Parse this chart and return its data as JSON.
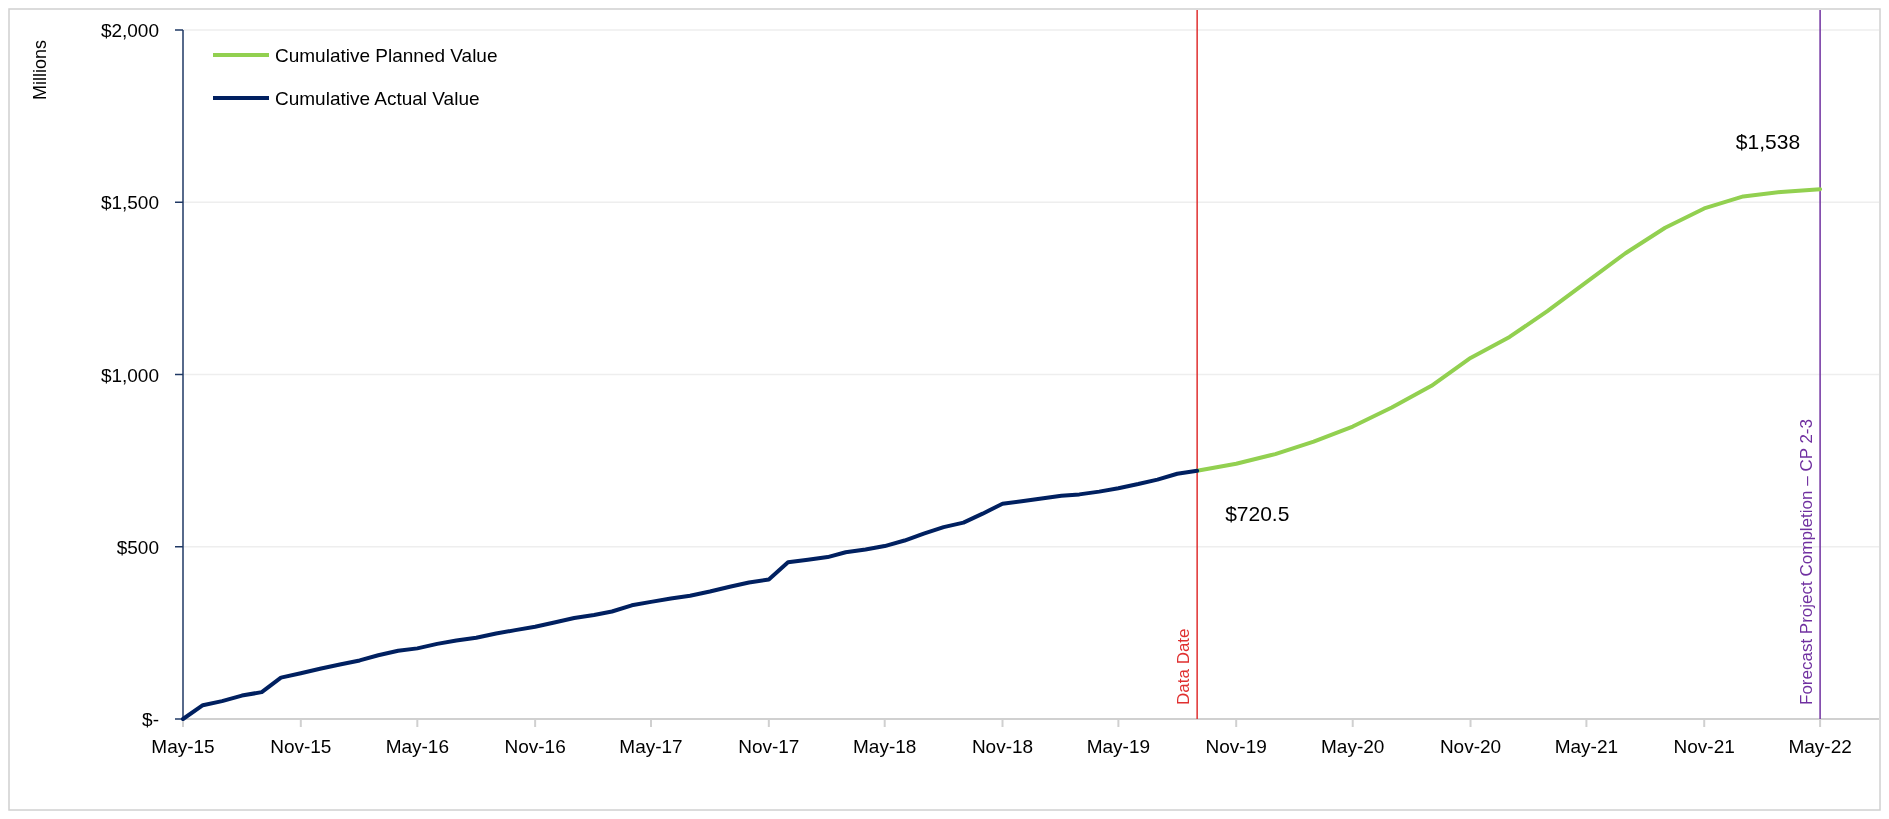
{
  "chart_data": {
    "type": "line",
    "ylabel": "Millions",
    "xlim": [
      "2015-05",
      "2022-08"
    ],
    "xticks": [
      {
        "value": "2015-05",
        "label": "May-15"
      },
      {
        "value": "2015-11",
        "label": "Nov-15"
      },
      {
        "value": "2016-05",
        "label": "May-16"
      },
      {
        "value": "2016-11",
        "label": "Nov-16"
      },
      {
        "value": "2017-05",
        "label": "May-17"
      },
      {
        "value": "2017-11",
        "label": "Nov-17"
      },
      {
        "value": "2018-05",
        "label": "May-18"
      },
      {
        "value": "2018-11",
        "label": "Nov-18"
      },
      {
        "value": "2019-05",
        "label": "May-19"
      },
      {
        "value": "2019-11",
        "label": "Nov-19"
      },
      {
        "value": "2020-05",
        "label": "May-20"
      },
      {
        "value": "2020-11",
        "label": "Nov-20"
      },
      {
        "value": "2021-05",
        "label": "May-21"
      },
      {
        "value": "2021-11",
        "label": "Nov-21"
      },
      {
        "value": "2022-05",
        "label": "May-22"
      }
    ],
    "ylim": [
      0,
      2000
    ],
    "yticks": [
      {
        "value": 0,
        "label": "$-"
      },
      {
        "value": 500,
        "label": "$500"
      },
      {
        "value": 1000,
        "label": "$1,000"
      },
      {
        "value": 1500,
        "label": "$1,500"
      },
      {
        "value": 2000,
        "label": "$2,000"
      }
    ],
    "grid": "y",
    "legend": "top left",
    "series": [
      {
        "name": "Cumulative Planned Value",
        "color": "#92d050",
        "x": [
          "2019-09",
          "2019-11",
          "2020-01",
          "2020-03",
          "2020-05",
          "2020-07",
          "2020-09",
          "2020-11",
          "2021-01",
          "2021-03",
          "2021-05",
          "2021-07",
          "2021-09",
          "2021-11",
          "2022-01",
          "2022-03",
          "2022-05"
        ],
        "values": [
          720.5,
          741,
          769,
          805,
          849,
          904,
          967,
          1048,
          1109,
          1184,
          1268,
          1352,
          1426,
          1482,
          1517,
          1530,
          1538
        ]
      },
      {
        "name": "Cumulative Actual Value",
        "color": "#002060",
        "x": [
          "2015-05",
          "2015-06",
          "2015-07",
          "2015-08",
          "2015-09",
          "2015-10",
          "2015-11",
          "2015-12",
          "2016-01",
          "2016-02",
          "2016-03",
          "2016-04",
          "2016-05",
          "2016-06",
          "2016-07",
          "2016-08",
          "2016-09",
          "2016-10",
          "2016-11",
          "2016-12",
          "2017-01",
          "2017-02",
          "2017-03",
          "2017-04",
          "2017-05",
          "2017-06",
          "2017-07",
          "2017-08",
          "2017-09",
          "2017-10",
          "2017-11",
          "2017-12",
          "2018-01",
          "2018-02",
          "2018-03",
          "2018-04",
          "2018-05",
          "2018-06",
          "2018-07",
          "2018-08",
          "2018-09",
          "2018-10",
          "2018-11",
          "2018-12",
          "2019-01",
          "2019-02",
          "2019-03",
          "2019-04",
          "2019-05",
          "2019-06",
          "2019-07",
          "2019-08",
          "2019-09"
        ],
        "values": [
          0,
          40,
          52,
          68,
          78,
          120,
          133,
          146,
          158,
          170,
          185,
          198,
          205,
          218,
          228,
          236,
          248,
          258,
          268,
          280,
          293,
          302,
          312,
          330,
          340,
          350,
          358,
          370,
          384,
          396,
          405,
          455,
          462,
          470,
          484,
          492,
          502,
          518,
          538,
          557,
          570,
          596,
          625,
          632,
          640,
          648,
          652,
          660,
          670,
          682,
          695,
          712,
          720.5
        ]
      }
    ],
    "ref_lines": [
      {
        "axis": "x",
        "value": "2019-09",
        "label": "Data Date",
        "color": "#e03030"
      },
      {
        "axis": "x",
        "value": "2022-05",
        "label": "Forecast Project Completion – CP 2-3",
        "color": "#7030a0"
      }
    ],
    "annotations": [
      {
        "text": "$720.5",
        "x": "2019-09",
        "y": 720.5
      },
      {
        "text": "$1,538",
        "x": "2022-05",
        "y": 1538
      }
    ]
  }
}
